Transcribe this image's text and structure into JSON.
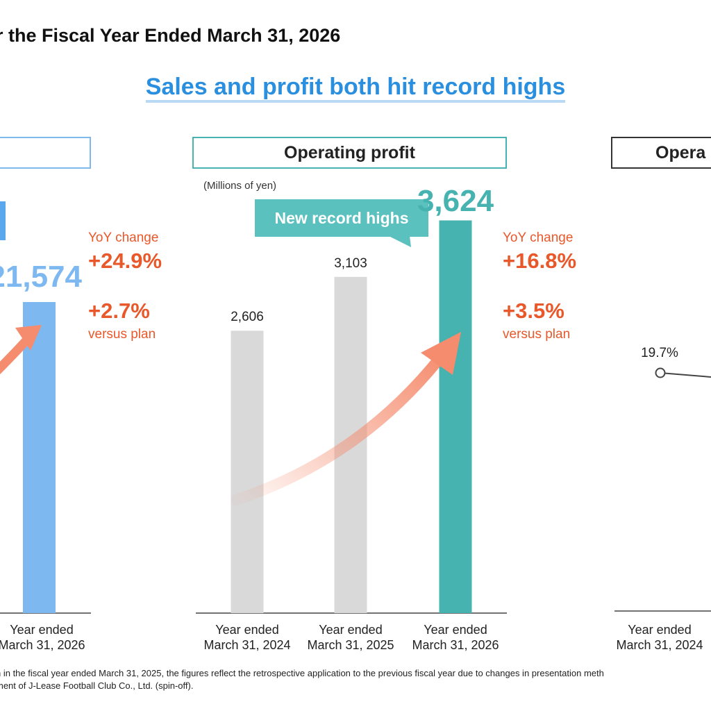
{
  "page_title": "r the Fiscal Year Ended March 31, 2026",
  "headline": "Sales and profit both hit record highs",
  "colors": {
    "headline": "#2b8fe0",
    "sales_bar": "#7eb8f0",
    "sales_box": "#7eb8f0",
    "op_bar": "#47b3b0",
    "op_box": "#47b3b0",
    "prior_bar": "#d9d9d9",
    "callout": "#5bc1bf",
    "orange": "#e8582a",
    "arrow": "#f58c6e"
  },
  "icons": {
    "growth_arrow": "curved-up-arrow"
  },
  "left_panel": {
    "box_label": "",
    "value_label": "21,574",
    "yoy_label": "YoY change",
    "yoy_value": "+24.9%",
    "plan_value": "+2.7%",
    "plan_label": "versus plan",
    "x_label_line1": "Year ended",
    "x_label_line2": "March 31, 2026"
  },
  "middle_panel": {
    "box_label": "Operating profit",
    "unit": "(Millions of yen)",
    "callout": "New record highs",
    "yoy_label": "YoY change",
    "yoy_value": "+16.8%",
    "plan_value": "+3.5%",
    "plan_label": "versus plan"
  },
  "right_panel": {
    "box_label": "Opera",
    "point_label": "19.7%",
    "x_label_line1": "Year ended",
    "x_label_line2": "March 31, 2024"
  },
  "footnote": {
    "line1": "n in the fiscal year ended March 31, 2025, the figures reflect the retrospective application to the previous fiscal year due to changes in presentation meth",
    "line2": "ment of J-Lease Football Club Co., Ltd. (spin-off)."
  },
  "chart_data": [
    {
      "type": "bar",
      "title": "Operating profit",
      "unit": "(Millions of yen)",
      "categories": [
        [
          "Year ended",
          "March 31, 2024"
        ],
        [
          "Year ended",
          "March 31, 2025"
        ],
        [
          "Year ended",
          "March 31, 2026"
        ]
      ],
      "values": [
        2606,
        3103,
        3624
      ],
      "value_labels": [
        "2,606",
        "3,103",
        "3,624"
      ],
      "ylim": [
        0,
        3800
      ]
    }
  ]
}
